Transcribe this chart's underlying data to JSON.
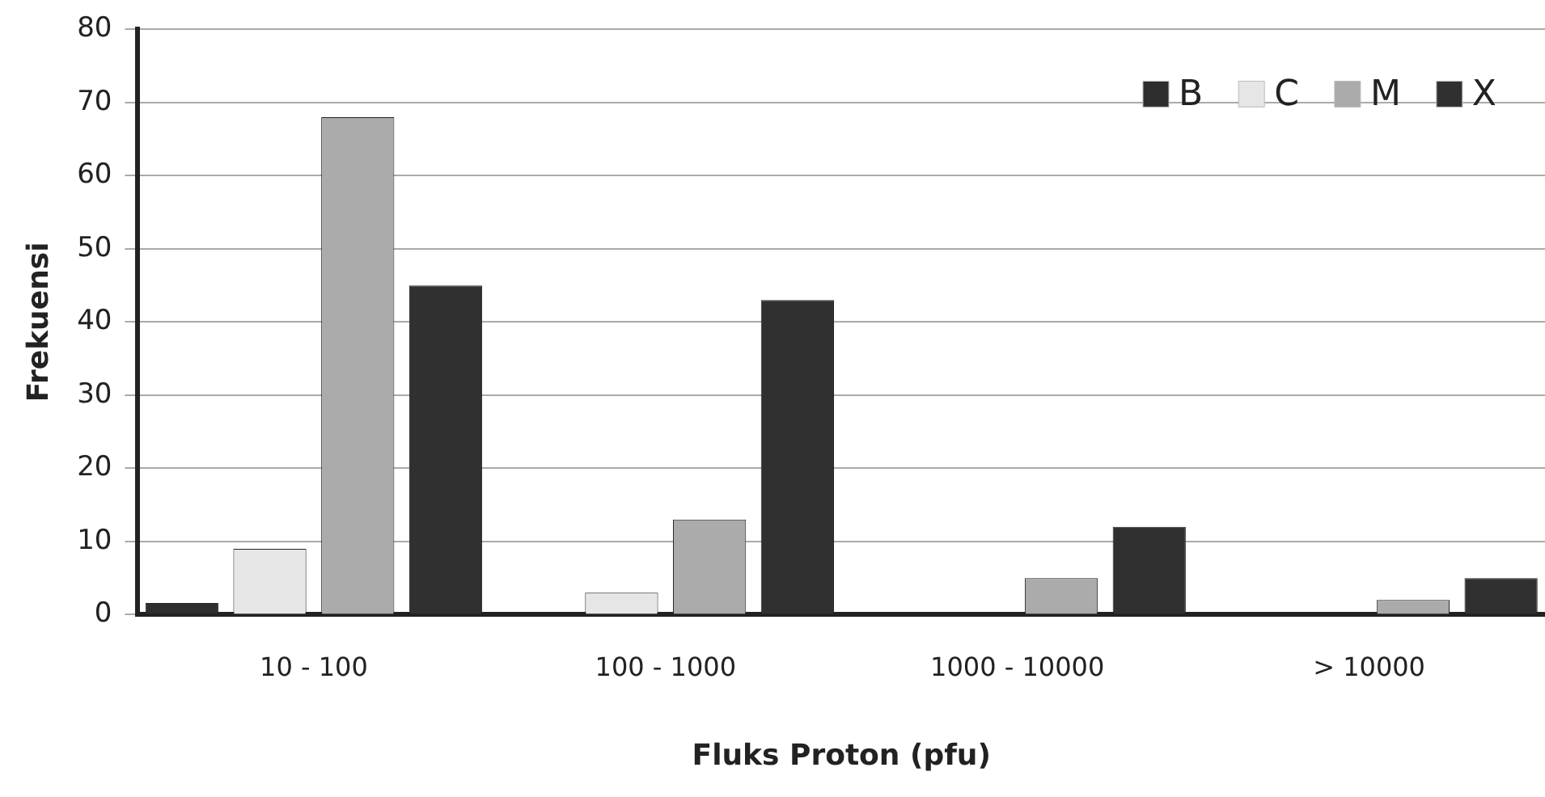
{
  "chart_data": {
    "type": "bar",
    "xlabel": "Fluks Proton (pfu)",
    "ylabel": "Frekuensi",
    "categories": [
      "10 - 100",
      "100 - 1000",
      "1000 - 10000",
      "> 10000"
    ],
    "series": [
      {
        "name": "B",
        "color": "#2e2e2e",
        "values": [
          1.6,
          0,
          0,
          0
        ]
      },
      {
        "name": "C",
        "color": "#e6e6e6",
        "values": [
          9,
          3,
          0,
          0
        ]
      },
      {
        "name": "M",
        "color": "#ababab",
        "values": [
          68,
          13,
          5,
          2
        ]
      },
      {
        "name": "X",
        "color": "#303030",
        "values": [
          45,
          43,
          12,
          5
        ]
      }
    ],
    "ylim": [
      0,
      80
    ],
    "yticks": [
      0,
      10,
      20,
      30,
      40,
      50,
      60,
      70,
      80
    ],
    "grid": "y",
    "legend": "top right"
  }
}
